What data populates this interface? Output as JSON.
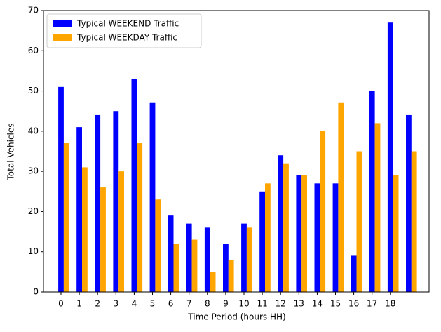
{
  "chart_data": {
    "type": "bar",
    "xlabel": "Time Period (hours HH)",
    "ylabel": "Total Vehicles",
    "categories": [
      "0",
      "1",
      "2",
      "3",
      "4",
      "5",
      "6",
      "7",
      "8",
      "9",
      "10",
      "11",
      "12",
      "13",
      "14",
      "15",
      "16",
      "17",
      "18",
      null
    ],
    "series": [
      {
        "name": "Typical WEEKEND Traffic",
        "color": "#0000ff",
        "values": [
          51,
          41,
          44,
          45,
          53,
          47,
          19,
          17,
          16,
          12,
          17,
          25,
          34,
          29,
          27,
          27,
          9,
          50,
          67,
          44
        ]
      },
      {
        "name": "Typical WEEKDAY Traffic",
        "color": "#ffa500",
        "values": [
          37,
          31,
          26,
          30,
          37,
          23,
          12,
          13,
          5,
          8,
          16,
          27,
          32,
          29,
          40,
          47,
          35,
          42,
          29,
          35
        ]
      }
    ],
    "ylim": [
      0,
      70
    ],
    "yticks": [
      0,
      10,
      20,
      30,
      40,
      50,
      60,
      70
    ],
    "legend": "upper left"
  }
}
